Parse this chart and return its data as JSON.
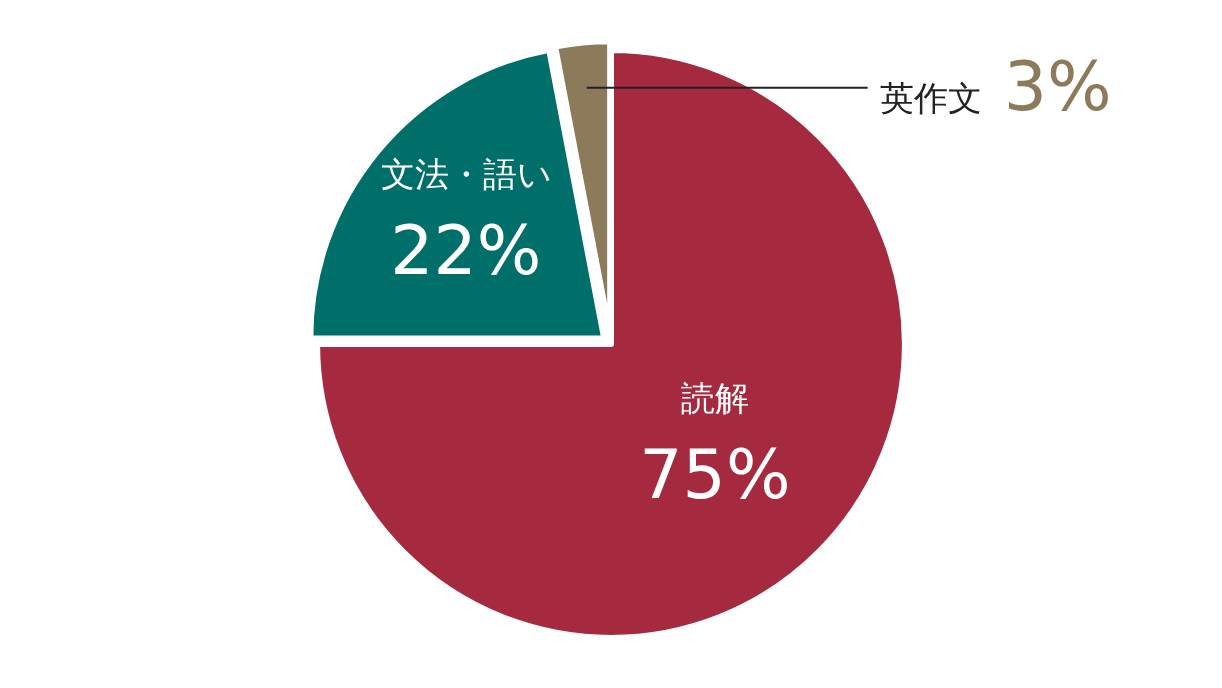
{
  "chart_data": {
    "type": "pie",
    "categories": [
      "読解",
      "文法・語い",
      "英作文"
    ],
    "values": [
      75,
      22,
      3
    ],
    "value_labels": [
      "75%",
      "22%",
      "3%"
    ],
    "colors": [
      "#a52a3f",
      "#006f6a",
      "#8c7a5a"
    ],
    "legend": false
  }
}
